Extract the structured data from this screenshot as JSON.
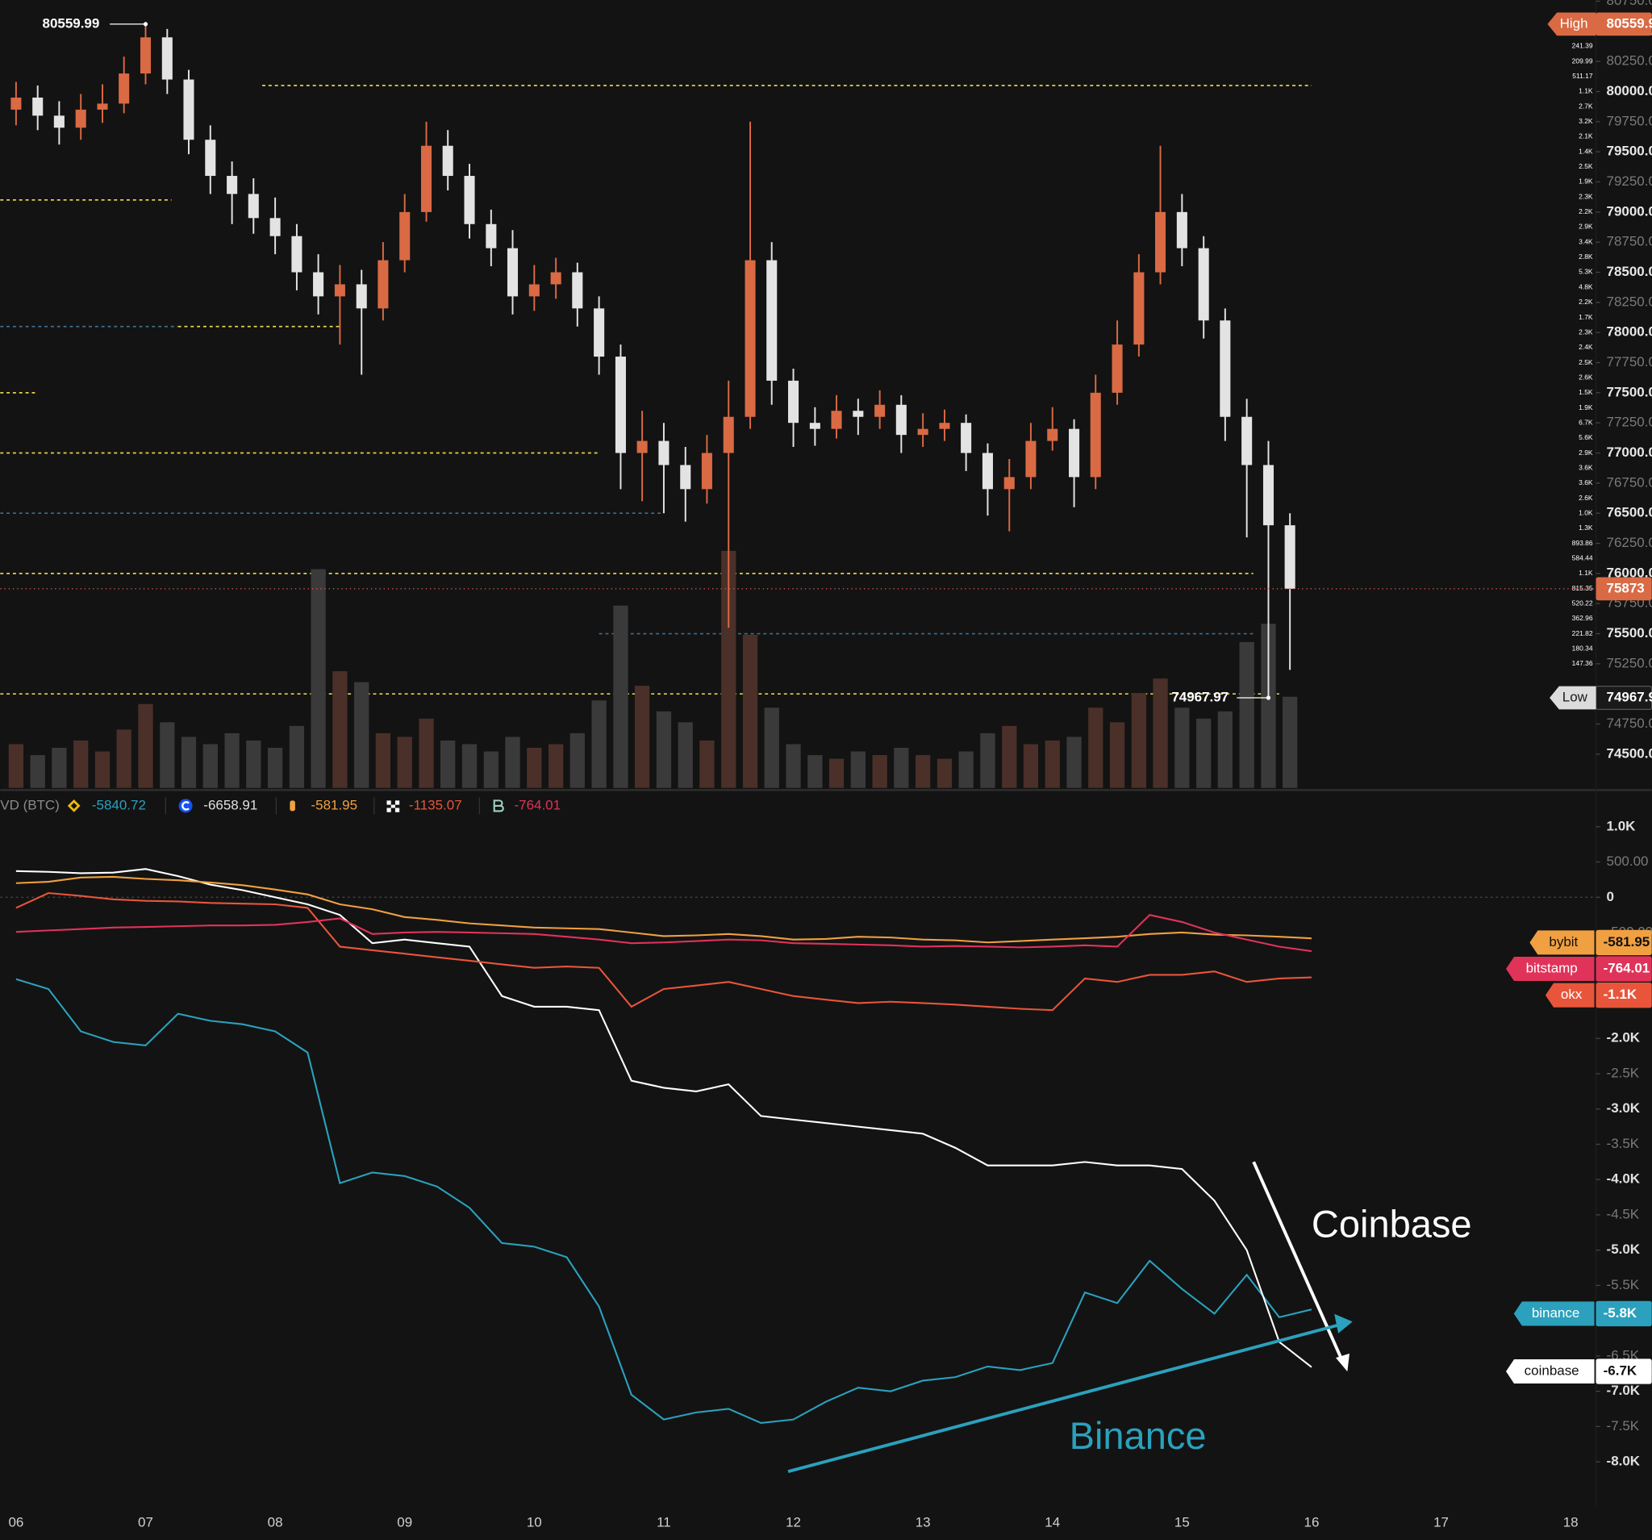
{
  "chart_data": [
    {
      "type": "candlestick",
      "xlim": [
        5.878,
        18.195
      ],
      "ylim": [
        74220,
        80760
      ],
      "yticks": [
        {
          "value": 74500,
          "label": "74500.00"
        },
        {
          "value": 74750,
          "label": "74750.00"
        },
        {
          "value": 75000,
          "label": "75000.00"
        },
        {
          "value": 75250,
          "label": "75250.00"
        },
        {
          "value": 75500,
          "label": "75500.00"
        },
        {
          "value": 75750,
          "label": "75750.00"
        },
        {
          "value": 76000,
          "label": "76000.00"
        },
        {
          "value": 76250,
          "label": "76250.00"
        },
        {
          "value": 76500,
          "label": "76500.00"
        },
        {
          "value": 76750,
          "label": "76750.00"
        },
        {
          "value": 77000,
          "label": "77000.00"
        },
        {
          "value": 77250,
          "label": "77250.00"
        },
        {
          "value": 77500,
          "label": "77500.00"
        },
        {
          "value": 77750,
          "label": "77750.00"
        },
        {
          "value": 78000,
          "label": "78000.00"
        },
        {
          "value": 78250,
          "label": "78250.00"
        },
        {
          "value": 78500,
          "label": "78500.00"
        },
        {
          "value": 78750,
          "label": "78750.00"
        },
        {
          "value": 79000,
          "label": "79000.00"
        },
        {
          "value": 79250,
          "label": "79250.00"
        },
        {
          "value": 79500,
          "label": "79500.00"
        },
        {
          "value": 79750,
          "label": "79750.00"
        },
        {
          "value": 80000,
          "label": "80000.00"
        },
        {
          "value": 80250,
          "label": "80250.00"
        },
        {
          "value": 80500,
          "label": "80500.00"
        },
        {
          "value": 80750,
          "label": "80750.00"
        }
      ],
      "colors": {
        "up": "#d96a44",
        "down": "#e3e3e3",
        "volume_up": "#4a3028",
        "volume_down": "#3a3a3a",
        "price_line": "#d9534f"
      },
      "x": [
        6,
        6.167,
        6.333,
        6.5,
        6.667,
        6.833,
        7,
        7.167,
        7.333,
        7.5,
        7.667,
        7.833,
        8,
        8.167,
        8.333,
        8.5,
        8.667,
        8.833,
        9,
        9.167,
        9.333,
        9.5,
        9.667,
        9.833,
        10,
        10.167,
        10.333,
        10.5,
        10.667,
        10.833,
        11,
        11.167,
        11.333,
        11.5,
        11.667,
        11.833,
        12,
        12.167,
        12.333,
        12.5,
        12.667,
        12.833,
        13,
        13.167,
        13.333,
        13.5,
        13.667,
        13.833,
        14,
        14.167,
        14.333,
        14.5,
        14.667,
        14.833,
        15,
        15.167,
        15.333,
        15.5,
        15.667,
        15.833
      ],
      "open": [
        79850,
        79950,
        79800,
        79700,
        79850,
        79900,
        80150,
        80450,
        80100,
        79600,
        79300,
        79150,
        78950,
        78800,
        78500,
        78300,
        78400,
        78200,
        78600,
        79000,
        79550,
        79300,
        78900,
        78700,
        78300,
        78400,
        78500,
        78200,
        77800,
        77000,
        77100,
        76900,
        76700,
        77000,
        77300,
        78600,
        77600,
        77250,
        77200,
        77350,
        77300,
        77400,
        77150,
        77200,
        77250,
        77000,
        76700,
        76800,
        77100,
        77200,
        76800,
        77500,
        77900,
        78500,
        79000,
        78700,
        78100,
        77300,
        76900,
        76400
      ],
      "high": [
        80080,
        80050,
        79920,
        79980,
        80060,
        80290,
        80559.99,
        80520,
        80180,
        79720,
        79420,
        79280,
        79120,
        78900,
        78650,
        78560,
        78520,
        78750,
        79150,
        79750,
        79680,
        79400,
        79020,
        78850,
        78560,
        78620,
        78580,
        78300,
        77900,
        77350,
        77250,
        77050,
        77150,
        77600,
        79750,
        78750,
        77700,
        77380,
        77480,
        77450,
        77520,
        77480,
        77330,
        77360,
        77320,
        77080,
        76950,
        77250,
        77380,
        77280,
        77650,
        78100,
        78650,
        79550,
        79150,
        78800,
        78200,
        77450,
        77100,
        76500
      ],
      "low": [
        79720,
        79680,
        79560,
        79600,
        79740,
        79820,
        80060,
        79980,
        79480,
        79150,
        78900,
        78820,
        78650,
        78350,
        78150,
        77900,
        77650,
        78100,
        78500,
        78920,
        79180,
        78780,
        78550,
        78150,
        78180,
        78280,
        78050,
        77650,
        76700,
        76600,
        76500,
        76430,
        76580,
        75550,
        77200,
        77400,
        77050,
        77060,
        77120,
        77150,
        77200,
        77000,
        77050,
        77100,
        76850,
        76480,
        76350,
        76700,
        77020,
        76550,
        76700,
        77400,
        77800,
        78400,
        78550,
        77950,
        77100,
        76300,
        74967.97,
        75200
      ],
      "close": [
        79950,
        79800,
        79700,
        79850,
        79900,
        80150,
        80450,
        80100,
        79600,
        79300,
        79150,
        78950,
        78800,
        78500,
        78300,
        78400,
        78200,
        78600,
        79000,
        79550,
        79300,
        78900,
        78700,
        78300,
        78400,
        78500,
        78200,
        77800,
        77000,
        77100,
        76900,
        76700,
        77000,
        77300,
        78600,
        77600,
        77250,
        77200,
        77350,
        77300,
        77400,
        77150,
        77200,
        77250,
        77000,
        76700,
        76800,
        77100,
        77200,
        76800,
        77500,
        77900,
        78500,
        79000,
        78700,
        78100,
        77300,
        76900,
        76400,
        75873
      ],
      "volume": [
        1200,
        900,
        1100,
        1300,
        1000,
        1600,
        2300,
        1800,
        1400,
        1200,
        1500,
        1300,
        1100,
        1700,
        6000,
        3200,
        2900,
        1500,
        1400,
        1900,
        1300,
        1200,
        1000,
        1400,
        1100,
        1200,
        1500,
        2400,
        5000,
        2800,
        2100,
        1800,
        1300,
        6500,
        4200,
        2200,
        1200,
        900,
        800,
        1000,
        900,
        1100,
        900,
        800,
        1000,
        1500,
        1700,
        1200,
        1300,
        1400,
        2200,
        1800,
        2600,
        3000,
        2200,
        1900,
        2100,
        4000,
        4500,
        2500
      ],
      "high_label": "High",
      "low_label": "Low",
      "levels": [
        {
          "price": 80050,
          "start": 7.9,
          "end": 16.0,
          "color": "#e6d24a"
        },
        {
          "price": 79100,
          "start": 5.878,
          "end": 7.2,
          "color": "#e6d24a"
        },
        {
          "price": 78050,
          "start": 7.25,
          "end": 8.5,
          "color": "#e6d24a"
        },
        {
          "price": 78050,
          "start": 5.878,
          "end": 7.25,
          "color": "#3f6f8f"
        },
        {
          "price": 77500,
          "start": 5.878,
          "end": 6.15,
          "color": "#e6d24a"
        },
        {
          "price": 77000,
          "start": 5.878,
          "end": 10.5,
          "color": "#e6d24a"
        },
        {
          "price": 76500,
          "start": 5.878,
          "end": 11.0,
          "color": "#3f6f8f"
        },
        {
          "price": 76000,
          "start": 5.878,
          "end": 15.55,
          "color": "#e6d24a"
        },
        {
          "price": 75500,
          "start": 10.5,
          "end": 15.55,
          "color": "#3f6f8f"
        },
        {
          "price": 75000,
          "start": 5.878,
          "end": 15.75,
          "color": "#e6d24a"
        }
      ],
      "volume_profile": {
        "sell_color": "#8c1f2a",
        "buy_color": "#2e6a36",
        "prices": [
          80375,
          80250,
          80125,
          80000,
          79875,
          79750,
          79625,
          79500,
          79375,
          79250,
          79125,
          79000,
          78875,
          78750,
          78625,
          78500,
          78375,
          78250,
          78125,
          78000,
          77875,
          77750,
          77625,
          77500,
          77375,
          77250,
          77125,
          77000,
          76875,
          76750,
          76625,
          76500,
          76375,
          76250,
          76125,
          76000,
          75875,
          75750,
          75625,
          75500,
          75375,
          75250
        ],
        "buy": [
          130,
          110,
          250,
          600,
          1400,
          1500,
          1000,
          800,
          1300,
          900,
          1200,
          1100,
          1500,
          2000,
          1500,
          2300,
          2400,
          1200,
          1000,
          1200,
          1300,
          1500,
          1300,
          800,
          1000,
          3300,
          2800,
          1400,
          1800,
          1700,
          1200,
          500,
          700,
          450,
          350,
          550,
          400,
          300,
          200,
          150,
          100,
          80
        ],
        "sell": [
          111.39,
          99.99,
          261.17,
          500,
          1300,
          1700,
          1100,
          600,
          1200,
          1000,
          1100,
          1100,
          1400,
          1400,
          1300,
          3000,
          2400,
          1000,
          700,
          1100,
          1100,
          1000,
          1300,
          700,
          900,
          3400,
          2800,
          1500,
          1800,
          1900,
          1400,
          500,
          600,
          443.86,
          234.44,
          550,
          415.35,
          220.22,
          162.96,
          71.82,
          80.34,
          67.36
        ],
        "labels": [
          "241.39",
          "209.99",
          "511.17",
          "1.1K",
          "2.7K",
          "3.2K",
          "2.1K",
          "1.4K",
          "2.5K",
          "1.9K",
          "2.3K",
          "2.2K",
          "2.9K",
          "3.4K",
          "2.8K",
          "5.3K",
          "4.8K",
          "2.2K",
          "1.7K",
          "2.3K",
          "2.4K",
          "2.5K",
          "2.6K",
          "1.5K",
          "1.9K",
          "6.7K",
          "5.6K",
          "2.9K",
          "3.6K",
          "3.6K",
          "2.6K",
          "1.0K",
          "1.3K",
          "893.86",
          "584.44",
          "1.1K",
          "815.35",
          "520.22",
          "362.96",
          "221.82",
          "180.34",
          "147.36"
        ]
      }
    },
    {
      "type": "line",
      "title": "VD (BTC)",
      "xlim": [
        5.878,
        18.195
      ],
      "xticks": [
        {
          "value": 6,
          "label": "06"
        },
        {
          "value": 7,
          "label": "07"
        },
        {
          "value": 8,
          "label": "08"
        },
        {
          "value": 9,
          "label": "09"
        },
        10,
        11,
        12,
        13,
        14,
        15,
        16,
        17,
        18
      ],
      "ylim": [
        -8630,
        1490
      ],
      "yticks": [
        {
          "value": 1000,
          "label": "1.0K"
        },
        {
          "value": 500,
          "label": "500.00"
        },
        0,
        {
          "value": -500,
          "label": "-500.00"
        },
        {
          "value": -1000,
          "label": "-1.0K"
        },
        {
          "value": -1500,
          "label": "-1.5K"
        },
        {
          "value": -2000,
          "label": "-2.0K"
        },
        {
          "value": -2500,
          "label": "-2.5K"
        },
        {
          "value": -3000,
          "label": "-3.0K"
        },
        {
          "value": -3500,
          "label": "-3.5K"
        },
        {
          "value": -4000,
          "label": "-4.0K"
        },
        {
          "value": -4500,
          "label": "-4.5K"
        },
        {
          "value": -5000,
          "label": "-5.0K"
        },
        {
          "value": -5500,
          "label": "-5.5K"
        },
        {
          "value": -6000,
          "label": "-6.0K"
        },
        {
          "value": -6500,
          "label": "-6.5K"
        },
        {
          "value": -7000,
          "label": "-7.0K"
        },
        {
          "value": -7500,
          "label": "-7.5K"
        },
        {
          "value": -8000,
          "label": "-8.0K"
        }
      ],
      "x": [
        6,
        6.25,
        6.5,
        6.75,
        7,
        7.25,
        7.5,
        7.75,
        8,
        8.25,
        8.5,
        8.75,
        9,
        9.25,
        9.5,
        9.75,
        10,
        10.25,
        10.5,
        10.75,
        11,
        11.25,
        11.5,
        11.75,
        12,
        12.25,
        12.5,
        12.75,
        13,
        13.25,
        13.5,
        13.75,
        14,
        14.25,
        14.5,
        14.75,
        15,
        15.25,
        15.5,
        15.75,
        16
      ],
      "series": [
        {
          "name": "binance",
          "color": "#2ba1bd",
          "tag_label": "-5.8K",
          "values": [
            -1160,
            -1300,
            -1900,
            -2050,
            -2100,
            -1650,
            -1750,
            -1800,
            -1900,
            -2200,
            -4050,
            -3900,
            -3950,
            -4100,
            -4400,
            -4900,
            -4950,
            -5100,
            -5800,
            -7050,
            -7400,
            -7300,
            -7250,
            -7450,
            -7400,
            -7150,
            -6950,
            -7000,
            -6850,
            -6800,
            -6650,
            -6700,
            -6600,
            -5600,
            -5750,
            -5150,
            -5550,
            -5900,
            -5350,
            -5950,
            -5840.72
          ]
        },
        {
          "name": "coinbase",
          "color": "#ffffff",
          "tag_label": "-6.7K",
          "values": [
            370,
            360,
            340,
            350,
            400,
            300,
            180,
            100,
            0,
            -100,
            -250,
            -650,
            -600,
            -650,
            -700,
            -1400,
            -1550,
            -1550,
            -1600,
            -2600,
            -2700,
            -2750,
            -2650,
            -3100,
            -3150,
            -3200,
            -3250,
            -3300,
            -3350,
            -3550,
            -3800,
            -3800,
            -3800,
            -3750,
            -3800,
            -3800,
            -3850,
            -4300,
            -5000,
            -6300,
            -6658.91
          ]
        },
        {
          "name": "bybit",
          "color": "#f0a040",
          "tag_label": "-581.95",
          "values": [
            200,
            220,
            280,
            290,
            260,
            240,
            210,
            170,
            110,
            40,
            -100,
            -170,
            -280,
            -320,
            -370,
            -400,
            -430,
            -440,
            -450,
            -500,
            -550,
            -540,
            -520,
            -550,
            -600,
            -590,
            -560,
            -570,
            -600,
            -610,
            -640,
            -620,
            -600,
            -580,
            -560,
            -520,
            -500,
            -530,
            -540,
            -560,
            -581.95
          ]
        },
        {
          "name": "okx",
          "color": "#e8553a",
          "tag_label": "-1.1K",
          "values": [
            -150,
            60,
            20,
            -30,
            -50,
            -60,
            -80,
            -90,
            -100,
            -150,
            -700,
            -750,
            -800,
            -850,
            -900,
            -950,
            -1000,
            -980,
            -1000,
            -1550,
            -1300,
            -1250,
            -1200,
            -1300,
            -1400,
            -1450,
            -1500,
            -1480,
            -1500,
            -1520,
            -1550,
            -1580,
            -1600,
            -1150,
            -1200,
            -1100,
            -1100,
            -1050,
            -1200,
            -1150,
            -1135.07
          ]
        },
        {
          "name": "bitstamp",
          "color": "#e0335a",
          "tag_label": "-764.01",
          "values": [
            -490,
            -470,
            -450,
            -430,
            -420,
            -410,
            -400,
            -400,
            -390,
            -350,
            -300,
            -520,
            -500,
            -490,
            -500,
            -510,
            -520,
            -560,
            -600,
            -650,
            -640,
            -620,
            -600,
            -610,
            -650,
            -660,
            -670,
            -680,
            -700,
            -690,
            -700,
            -710,
            -700,
            -680,
            -700,
            -250,
            -350,
            -500,
            -600,
            -700,
            -764.01
          ]
        }
      ],
      "zero_line": true,
      "annotations": [
        {
          "text": "Coinbase",
          "color": "#ffffff"
        },
        {
          "text": "Binance",
          "color": "#2ba1bd"
        }
      ]
    }
  ]
}
